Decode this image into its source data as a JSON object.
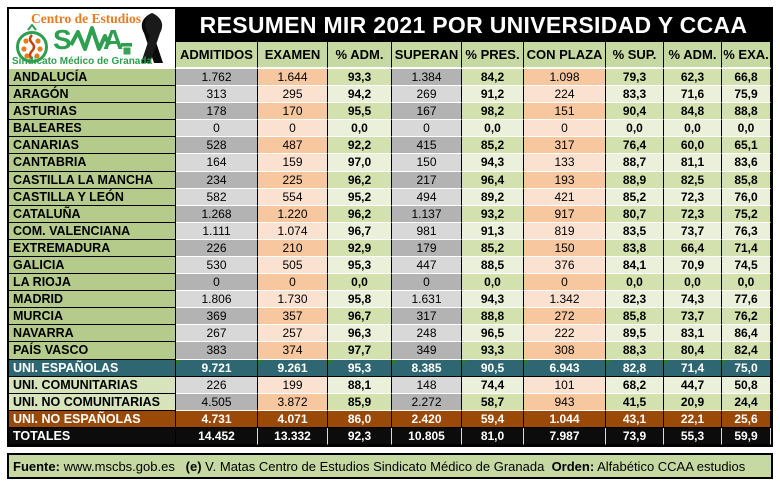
{
  "title": "RESUMEN MIR 2021 POR UNIVERSIDAD Y CCAA",
  "logo": {
    "line1": "Centro de Estudios",
    "acronym": "SMA",
    "line2": "Sindicato Médico de Granada"
  },
  "chart_data": {
    "type": "table",
    "columns": [
      "ADMITIDOS",
      "EXAMEN",
      "% ADM.",
      "SUPERAN",
      "% PRES.",
      "CON PLAZA",
      "% SUP.",
      "% ADM.",
      "% EXA."
    ],
    "rows": [
      {
        "label": "ANDALUCÍA",
        "style": "dark",
        "summary": false,
        "values": [
          "1.762",
          "1.644",
          "93,3",
          "1.384",
          "84,2",
          "1.098",
          "79,3",
          "62,3",
          "66,8"
        ]
      },
      {
        "label": "ARAGÓN",
        "style": "light",
        "summary": false,
        "values": [
          "313",
          "295",
          "94,2",
          "269",
          "91,2",
          "224",
          "83,3",
          "71,6",
          "75,9"
        ]
      },
      {
        "label": "ASTURIAS",
        "style": "dark",
        "summary": false,
        "values": [
          "178",
          "170",
          "95,5",
          "167",
          "98,2",
          "151",
          "90,4",
          "84,8",
          "88,8"
        ]
      },
      {
        "label": "BALEARES",
        "style": "light",
        "summary": false,
        "values": [
          "0",
          "0",
          "0,0",
          "0",
          "0,0",
          "0",
          "0,0",
          "0,0",
          "0,0"
        ]
      },
      {
        "label": "CANARIAS",
        "style": "dark",
        "summary": false,
        "values": [
          "528",
          "487",
          "92,2",
          "415",
          "85,2",
          "317",
          "76,4",
          "60,0",
          "65,1"
        ]
      },
      {
        "label": "CANTABRIA",
        "style": "light",
        "summary": false,
        "values": [
          "164",
          "159",
          "97,0",
          "150",
          "94,3",
          "133",
          "88,7",
          "81,1",
          "83,6"
        ]
      },
      {
        "label": "CASTILLA LA MANCHA",
        "style": "dark",
        "summary": false,
        "values": [
          "234",
          "225",
          "96,2",
          "217",
          "96,4",
          "193",
          "88,9",
          "82,5",
          "85,8"
        ]
      },
      {
        "label": "CASTILLA Y LEÓN",
        "style": "light",
        "summary": false,
        "values": [
          "582",
          "554",
          "95,2",
          "494",
          "89,2",
          "421",
          "85,2",
          "72,3",
          "76,0"
        ]
      },
      {
        "label": "CATALUÑA",
        "style": "dark",
        "summary": false,
        "values": [
          "1.268",
          "1.220",
          "96,2",
          "1.137",
          "93,2",
          "917",
          "80,7",
          "72,3",
          "75,2"
        ]
      },
      {
        "label": "COM. VALENCIANA",
        "style": "light",
        "summary": false,
        "values": [
          "1.111",
          "1.074",
          "96,7",
          "981",
          "91,3",
          "819",
          "83,5",
          "73,7",
          "76,3"
        ]
      },
      {
        "label": "EXTREMADURA",
        "style": "dark",
        "summary": false,
        "values": [
          "226",
          "210",
          "92,9",
          "179",
          "85,2",
          "150",
          "83,8",
          "66,4",
          "71,4"
        ]
      },
      {
        "label": "GALICIA",
        "style": "light",
        "summary": false,
        "values": [
          "530",
          "505",
          "95,3",
          "447",
          "88,5",
          "376",
          "84,1",
          "70,9",
          "74,5"
        ]
      },
      {
        "label": "LA RIOJA",
        "style": "dark",
        "summary": false,
        "values": [
          "0",
          "0",
          "0,0",
          "0",
          "0,0",
          "0",
          "0,0",
          "0,0",
          "0,0"
        ]
      },
      {
        "label": "MADRID",
        "style": "light",
        "summary": false,
        "values": [
          "1.806",
          "1.730",
          "95,8",
          "1.631",
          "94,3",
          "1.342",
          "82,3",
          "74,3",
          "77,6"
        ]
      },
      {
        "label": "MURCIA",
        "style": "dark",
        "summary": false,
        "values": [
          "369",
          "357",
          "96,7",
          "317",
          "88,8",
          "272",
          "85,8",
          "73,7",
          "76,2"
        ]
      },
      {
        "label": "NAVARRA",
        "style": "light",
        "summary": false,
        "values": [
          "267",
          "257",
          "96,3",
          "248",
          "96,5",
          "222",
          "89,5",
          "83,1",
          "86,4"
        ]
      },
      {
        "label": "PAÍS VASCO",
        "style": "dark",
        "summary": false,
        "values": [
          "383",
          "374",
          "97,7",
          "349",
          "93,3",
          "308",
          "88,3",
          "80,4",
          "82,4"
        ]
      },
      {
        "label": "UNI. ESPAÑOLAS",
        "style": "teal",
        "summary": false,
        "values": [
          "9.721",
          "9.261",
          "95,3",
          "8.385",
          "90,5",
          "6.943",
          "82,8",
          "71,4",
          "75,0"
        ]
      },
      {
        "label": "UNI. COMUNITARIAS",
        "style": "light",
        "summary": true,
        "values": [
          "226",
          "199",
          "88,1",
          "148",
          "74,4",
          "101",
          "68,2",
          "44,7",
          "50,8"
        ]
      },
      {
        "label": "UNI. NO COMUNITARIAS",
        "style": "dark",
        "summary": true,
        "values": [
          "4.505",
          "3.872",
          "85,9",
          "2.272",
          "58,7",
          "943",
          "41,5",
          "20,9",
          "24,4"
        ]
      },
      {
        "label": "UNI. NO ESPAÑOLAS",
        "style": "brown",
        "summary": false,
        "values": [
          "4.731",
          "4.071",
          "86,0",
          "2.420",
          "59,4",
          "1.044",
          "43,1",
          "22,1",
          "25,6"
        ]
      },
      {
        "label": "TOTALES",
        "style": "black",
        "summary": false,
        "values": [
          "14.452",
          "13.332",
          "92,3",
          "10.805",
          "81,0",
          "7.987",
          "73,9",
          "55,3",
          "59,9"
        ]
      }
    ]
  },
  "footer": {
    "segments": [
      {
        "text": "Fuente:",
        "bold": true
      },
      {
        "text": " www.mscbs.gob.es   ",
        "bold": false
      },
      {
        "text": "(e)",
        "bold": true
      },
      {
        "text": " V. Matas Centro de Estudios Sindicato Médico de Granada  ",
        "bold": false
      },
      {
        "text": "Orden:",
        "bold": true
      },
      {
        "text": " Alfabético CCAA estudios",
        "bold": false
      }
    ]
  },
  "colors": {
    "label_green": "#b5cb8b",
    "header_green": "#c7d9a2",
    "summary_label_green": "#d6e3bb",
    "gray_dark": "#b3b3b3",
    "gray_light": "#d8d8d8",
    "peach_dark": "#f7c8a0",
    "peach_light": "#fbe2d0",
    "pct_green_dark": "#d3e1ae",
    "pct_green_light": "#eaf0da",
    "teal_row": "#2e6772",
    "brown_row": "#9a4a06",
    "totals_row": "#0c0c0c",
    "flag_green": "#2e7d1f",
    "logo_orange": "#e87b1f",
    "logo_green": "#2e9e4f"
  }
}
